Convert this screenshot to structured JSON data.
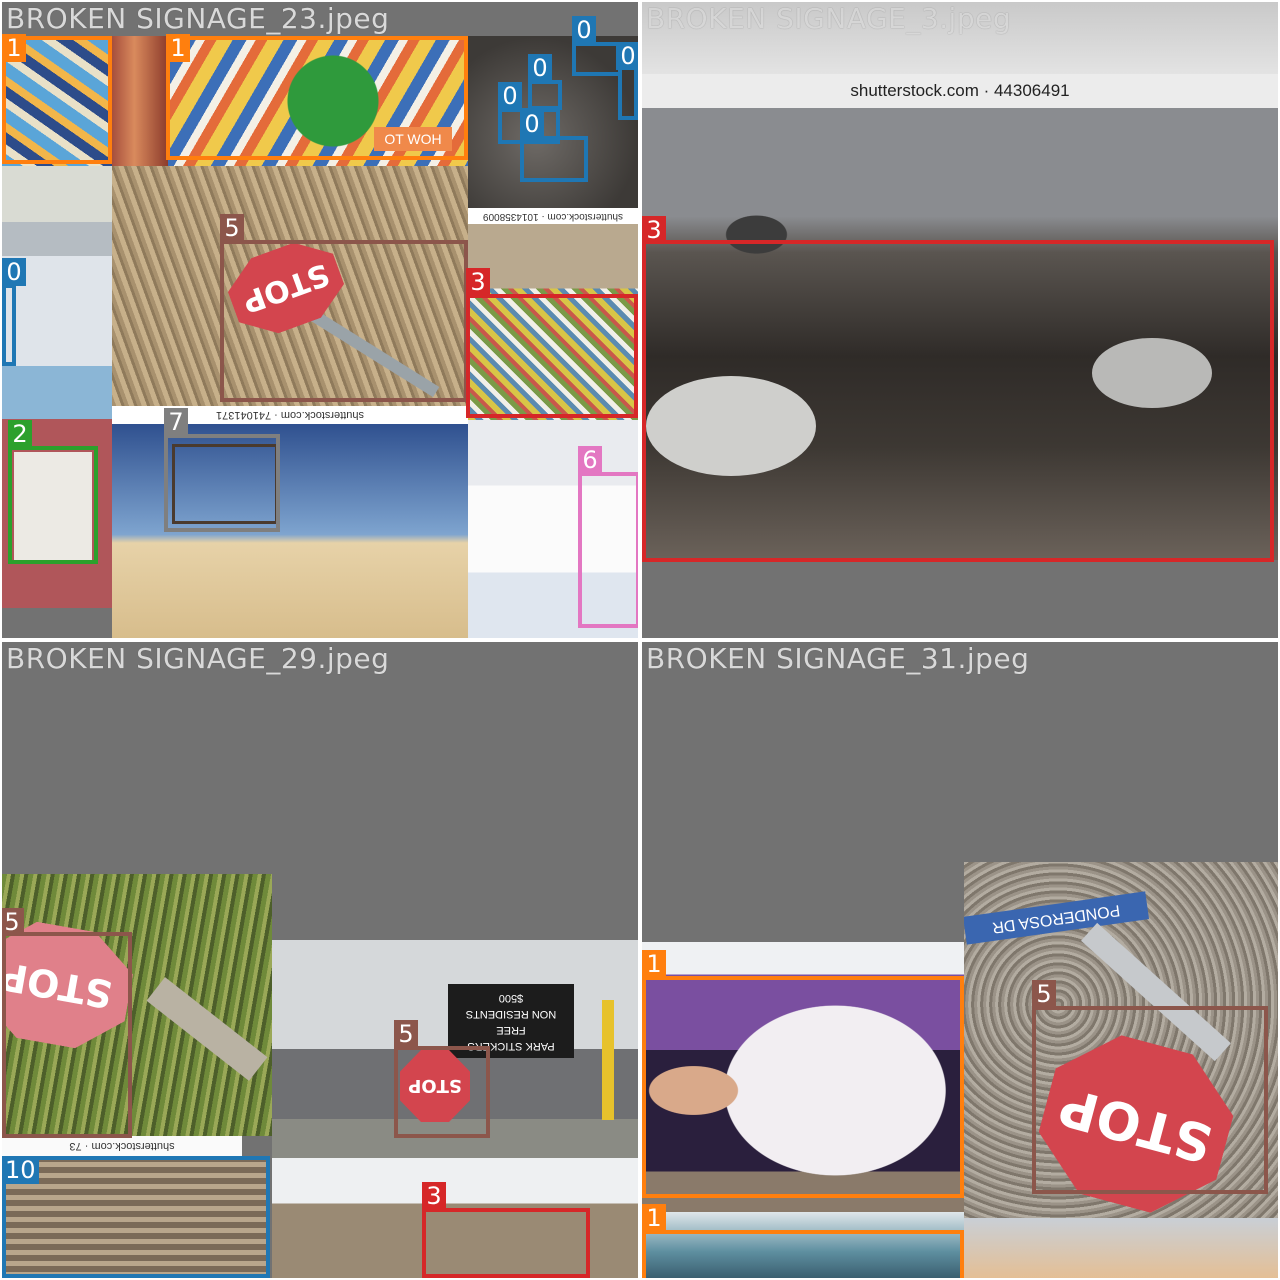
{
  "panels": [
    {
      "title": "BROKEN SIGNAGE_23.jpeg",
      "watermarks": [
        "shutterstock.com · 741041371",
        "shutterstock.com · 1014358009"
      ],
      "sign_text": "OT WOH",
      "stop_text": "STOP",
      "labels": {
        "l1a": "1",
        "l1b": "1",
        "l0a": "0",
        "l0b": "0",
        "l0c": "0",
        "l0d": "0",
        "l0e": "0",
        "l0f": "0",
        "l5": "5",
        "l3": "3",
        "l2": "2",
        "l7": "7",
        "l6": "6"
      }
    },
    {
      "title": "BROKEN SIGNAGE_3.jpeg",
      "watermarks": [
        "shutterstock.com · 44306491"
      ],
      "labels": {
        "l3": "3"
      }
    },
    {
      "title": "BROKEN SIGNAGE_29.jpeg",
      "watermarks": [
        "shutterstock.com · 73"
      ],
      "sign_lines": [
        "PARK STICKERS",
        "FREE",
        "NON RESIDENTS",
        "$500"
      ],
      "stop_text": "STOP",
      "labels": {
        "l5a": "5",
        "l5b": "5",
        "l10": "10",
        "l3": "3"
      }
    },
    {
      "title": "BROKEN SIGNAGE_31.jpeg",
      "street_sign": "PONDEROSA DR",
      "stop_text": "STOP",
      "labels": {
        "l1a": "1",
        "l5": "5",
        "l1b": "1"
      }
    }
  ],
  "colors": {
    "class0": "#1f77b4",
    "class1": "#ff7f0e",
    "class2": "#2ca02c",
    "class3": "#d62728",
    "class5": "#8c564b",
    "class6": "#e377c2",
    "class7": "#7f7f7f",
    "class10": "#1f77b4"
  }
}
